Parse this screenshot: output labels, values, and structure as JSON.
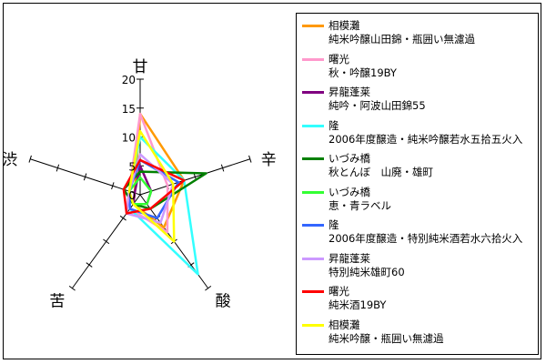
{
  "chart_data": {
    "type": "radar",
    "axes": [
      "甘",
      "辛",
      "酸",
      "苦",
      "渋"
    ],
    "ticks": [
      "0",
      "5",
      "10",
      "15",
      "20"
    ],
    "range": [
      0,
      20
    ],
    "legend_position": "right",
    "series": [
      {
        "line1": "相模灘",
        "line2": "純米吟醸山田錦・瓶囲い無濾過",
        "color": "#ff9900",
        "values": [
          14,
          8,
          7,
          2,
          1
        ]
      },
      {
        "line1": "曙光",
        "line2": "秋・吟醸19BY",
        "color": "#ff99cc",
        "values": [
          14,
          5,
          8,
          3,
          2
        ]
      },
      {
        "line1": "昇龍蓬莱",
        "line2": "純吟・阿波山田錦55",
        "color": "#800080",
        "values": [
          5,
          2,
          2,
          2,
          1
        ]
      },
      {
        "line1": "隆",
        "line2": "2006年度醸造・純米吟醸若水五拾五火入",
        "color": "#33ffff",
        "values": [
          10,
          8,
          17,
          3,
          2
        ]
      },
      {
        "line1": "いづみ橋",
        "line2": "秋とんぼ　山廃・雄町",
        "color": "#008000",
        "values": [
          4,
          12,
          3,
          2,
          3
        ]
      },
      {
        "line1": "いづみ橋",
        "line2": "恵・青ラベル",
        "color": "#33ff33",
        "values": [
          3,
          2,
          2,
          2,
          2
        ]
      },
      {
        "line1": "隆",
        "line2": "2006年度醸造・特別純米酒若水六拾火入",
        "color": "#3366ff",
        "values": [
          6,
          7,
          5,
          3,
          2
        ]
      },
      {
        "line1": "昇龍蓬莱",
        "line2": "特別純米雄町60",
        "color": "#cc99ff",
        "values": [
          7,
          6,
          6,
          4,
          2
        ]
      },
      {
        "line1": "曙光",
        "line2": "純米酒19BY",
        "color": "#ff0000",
        "values": [
          6,
          8,
          3,
          4,
          3
        ]
      },
      {
        "line1": "相模灘",
        "line2": "純米吟醸・瓶囲い無濾過",
        "color": "#ffff00",
        "values": [
          11,
          6,
          10,
          2,
          2
        ]
      }
    ]
  }
}
